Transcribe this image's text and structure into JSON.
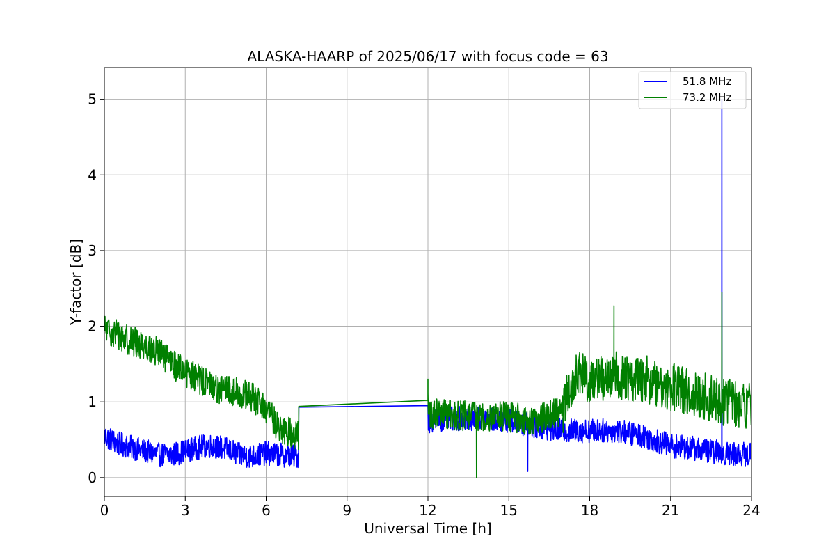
{
  "chart_data": {
    "type": "line",
    "title": "ALASKA-HAARP of 2025/06/17 with focus code = 63",
    "xlabel": "Universal Time [h]",
    "ylabel": "Y-factor [dB]",
    "xlim": [
      0,
      24
    ],
    "ylim": [
      -0.25,
      5.42
    ],
    "xticks": [
      0,
      3,
      6,
      9,
      12,
      15,
      18,
      21,
      24
    ],
    "yticks": [
      0,
      1,
      2,
      3,
      4,
      5
    ],
    "grid": true,
    "legend_position": "top-right",
    "series": [
      {
        "name": "51.8 MHz",
        "color": "#0000ff",
        "noise_amplitude": 0.16,
        "trend": [
          [
            0.0,
            0.55
          ],
          [
            0.5,
            0.45
          ],
          [
            1.0,
            0.4
          ],
          [
            1.5,
            0.35
          ],
          [
            2.0,
            0.3
          ],
          [
            2.5,
            0.3
          ],
          [
            3.0,
            0.35
          ],
          [
            3.5,
            0.4
          ],
          [
            4.0,
            0.42
          ],
          [
            4.5,
            0.38
          ],
          [
            5.0,
            0.3
          ],
          [
            5.5,
            0.28
          ],
          [
            6.0,
            0.32
          ],
          [
            6.5,
            0.3
          ],
          [
            7.2,
            0.28
          ],
          [
            7.21,
            0.93
          ],
          [
            12.0,
            0.95
          ],
          [
            12.01,
            0.75
          ],
          [
            13.0,
            0.78
          ],
          [
            14.0,
            0.78
          ],
          [
            15.0,
            0.75
          ],
          [
            16.0,
            0.68
          ],
          [
            17.0,
            0.62
          ],
          [
            18.0,
            0.62
          ],
          [
            19.0,
            0.62
          ],
          [
            20.0,
            0.55
          ],
          [
            21.0,
            0.42
          ],
          [
            22.0,
            0.38
          ],
          [
            23.0,
            0.32
          ],
          [
            24.0,
            0.3
          ]
        ],
        "gaps": [
          [
            7.21,
            12.0
          ]
        ],
        "spikes": [
          [
            22.9,
            5.0
          ],
          [
            15.7,
            0.08
          ]
        ]
      },
      {
        "name": "73.2 MHz",
        "color": "#008000",
        "noise_amplitude": 0.2,
        "trend": [
          [
            0.0,
            1.95
          ],
          [
            0.5,
            1.9
          ],
          [
            1.0,
            1.8
          ],
          [
            1.5,
            1.75
          ],
          [
            2.0,
            1.65
          ],
          [
            2.5,
            1.5
          ],
          [
            3.0,
            1.4
          ],
          [
            3.5,
            1.3
          ],
          [
            4.0,
            1.2
          ],
          [
            4.5,
            1.15
          ],
          [
            5.0,
            1.12
          ],
          [
            5.5,
            1.05
          ],
          [
            6.0,
            0.9
          ],
          [
            6.5,
            0.65
          ],
          [
            7.2,
            0.55
          ],
          [
            7.21,
            0.94
          ],
          [
            12.0,
            1.02
          ],
          [
            12.01,
            0.85
          ],
          [
            13.0,
            0.82
          ],
          [
            14.0,
            0.82
          ],
          [
            15.0,
            0.8
          ],
          [
            16.0,
            0.75
          ],
          [
            17.0,
            0.9
          ],
          [
            17.5,
            1.35
          ],
          [
            18.0,
            1.3
          ],
          [
            19.0,
            1.35
          ],
          [
            20.0,
            1.3
          ],
          [
            21.0,
            1.2
          ],
          [
            22.0,
            1.1
          ],
          [
            23.0,
            1.0
          ],
          [
            24.0,
            0.95
          ]
        ],
        "gaps": [
          [
            7.21,
            12.0
          ]
        ],
        "spikes": [
          [
            13.8,
            0.0
          ],
          [
            22.9,
            2.45
          ],
          [
            12.0,
            1.3
          ],
          [
            18.9,
            2.27
          ]
        ]
      }
    ]
  }
}
